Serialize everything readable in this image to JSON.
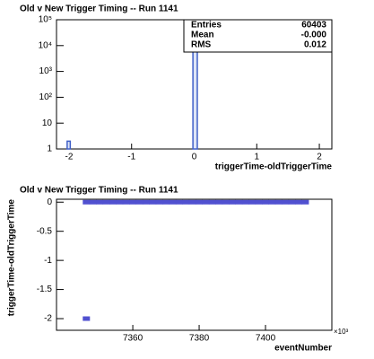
{
  "chart_data": [
    {
      "type": "histogram",
      "title": "Old v New Trigger Timing -- Run 1141",
      "x_label": "triggerTime-oldTriggerTime",
      "bins": [
        -2.03,
        -1.98,
        -0.02,
        0.05
      ],
      "counts": [
        2,
        0,
        60401
      ],
      "color": "#4060c8",
      "xlim": [
        -2.2,
        2.2
      ],
      "xticks": [
        -2,
        -1,
        0,
        1,
        2
      ],
      "ylim": [
        1,
        100000
      ],
      "log_y": true,
      "yticks": [
        1,
        10,
        {
          "value": 100,
          "label": "10²"
        },
        {
          "value": 1000,
          "label": "10³"
        },
        {
          "value": 10000,
          "label": "10⁴"
        },
        {
          "value": 100000,
          "label": "10⁵"
        }
      ],
      "stats": [
        [
          "Entries",
          60403
        ],
        [
          "Mean",
          "-0.000"
        ],
        [
          "RMS",
          0.012
        ]
      ]
    },
    {
      "type": "scatter",
      "title": "Old v New Trigger Timing -- Run 1141",
      "x_label": "eventNumber",
      "y_label": "triggerTime-oldTriggerTime",
      "x_multiplier": "×10³",
      "color": "#5050d0",
      "x": [
        7346,
        7346,
        7348,
        7350,
        7352,
        7354,
        7356,
        7358,
        7360,
        7362,
        7364,
        7366,
        7368,
        7370,
        7372,
        7374,
        7376,
        7378,
        7380,
        7382,
        7384,
        7386,
        7388,
        7390,
        7392,
        7394,
        7396,
        7398,
        7400,
        7402,
        7404,
        7406,
        7408,
        7410,
        7412
      ],
      "values": [
        -2,
        0,
        0,
        0,
        0,
        0,
        0,
        0,
        0,
        0,
        0,
        0,
        0,
        0,
        0,
        0,
        0,
        0,
        0,
        0,
        0,
        0,
        0,
        0,
        0,
        0,
        0,
        0,
        0,
        0,
        0,
        0,
        0,
        0,
        0
      ],
      "xlim": [
        7337,
        7420
      ],
      "xticks": [
        7360,
        7380,
        7400
      ],
      "ylim": [
        -2.2,
        0.05
      ],
      "yticks": [
        0,
        -0.5,
        -1,
        -1.5,
        -2
      ]
    }
  ]
}
